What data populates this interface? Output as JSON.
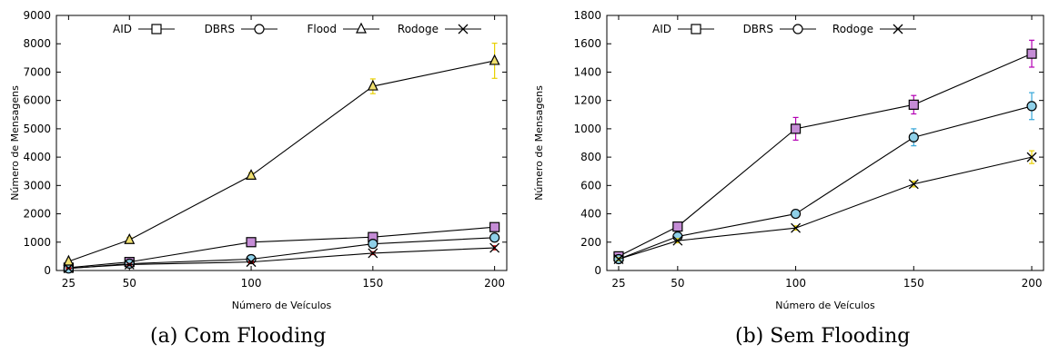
{
  "chart_data": [
    {
      "type": "line",
      "caption": "(a)  Com Flooding",
      "xlabel": "Número de Veículos",
      "ylabel": "Número de Mensagens",
      "x": [
        25,
        50,
        100,
        150,
        200
      ],
      "xlim": [
        20,
        205
      ],
      "ylim": [
        0,
        9000
      ],
      "yticks": [
        0,
        1000,
        2000,
        3000,
        4000,
        5000,
        6000,
        7000,
        8000,
        9000
      ],
      "grid": false,
      "legend_position": "top",
      "series": [
        {
          "name": "AID",
          "marker": "square",
          "values": [
            100,
            300,
            1000,
            1180,
            1530
          ],
          "err": [
            40,
            60,
            90,
            110,
            140
          ],
          "err_color": "#b400b4",
          "fill": "#c58cd6"
        },
        {
          "name": "DBRS",
          "marker": "circle",
          "values": [
            70,
            240,
            400,
            940,
            1160
          ],
          "err": [
            30,
            50,
            60,
            100,
            110
          ],
          "err_color": "#35a6d8",
          "fill": "#8fd0e8"
        },
        {
          "name": "Flood",
          "marker": "triangle",
          "values": [
            320,
            1080,
            3350,
            6500,
            7400
          ],
          "err": [
            40,
            90,
            100,
            260,
            620
          ],
          "err_color": "#e8d000",
          "fill": "#f0e070"
        },
        {
          "name": "Rodoge",
          "marker": "x",
          "values": [
            80,
            210,
            300,
            610,
            800
          ],
          "err": [
            20,
            40,
            30,
            50,
            70
          ],
          "err_color": "#d00000",
          "fill": "none"
        }
      ]
    },
    {
      "type": "line",
      "caption": "(b)  Sem Flooding",
      "xlabel": "Número de Veículos",
      "ylabel": "Número de Mensagens",
      "x": [
        25,
        50,
        100,
        150,
        200
      ],
      "xlim": [
        20,
        205
      ],
      "ylim": [
        0,
        1800
      ],
      "yticks": [
        0,
        200,
        400,
        600,
        800,
        1000,
        1200,
        1400,
        1600,
        1800
      ],
      "grid": false,
      "legend_position": "top",
      "series": [
        {
          "name": "AID",
          "marker": "square",
          "values": [
            100,
            310,
            1000,
            1170,
            1530
          ],
          "err": [
            15,
            30,
            80,
            65,
            95
          ],
          "err_color": "#b400b4",
          "fill": "#c58cd6"
        },
        {
          "name": "DBRS",
          "marker": "circle",
          "values": [
            80,
            240,
            400,
            940,
            1160
          ],
          "err": [
            10,
            25,
            20,
            60,
            95
          ],
          "err_color": "#35a6d8",
          "fill": "#8fd0e8"
        },
        {
          "name": "Rodoge",
          "marker": "x",
          "values": [
            80,
            210,
            300,
            610,
            800
          ],
          "err": [
            10,
            15,
            15,
            20,
            45
          ],
          "err_color": "#e8d000",
          "fill": "none"
        }
      ]
    }
  ]
}
